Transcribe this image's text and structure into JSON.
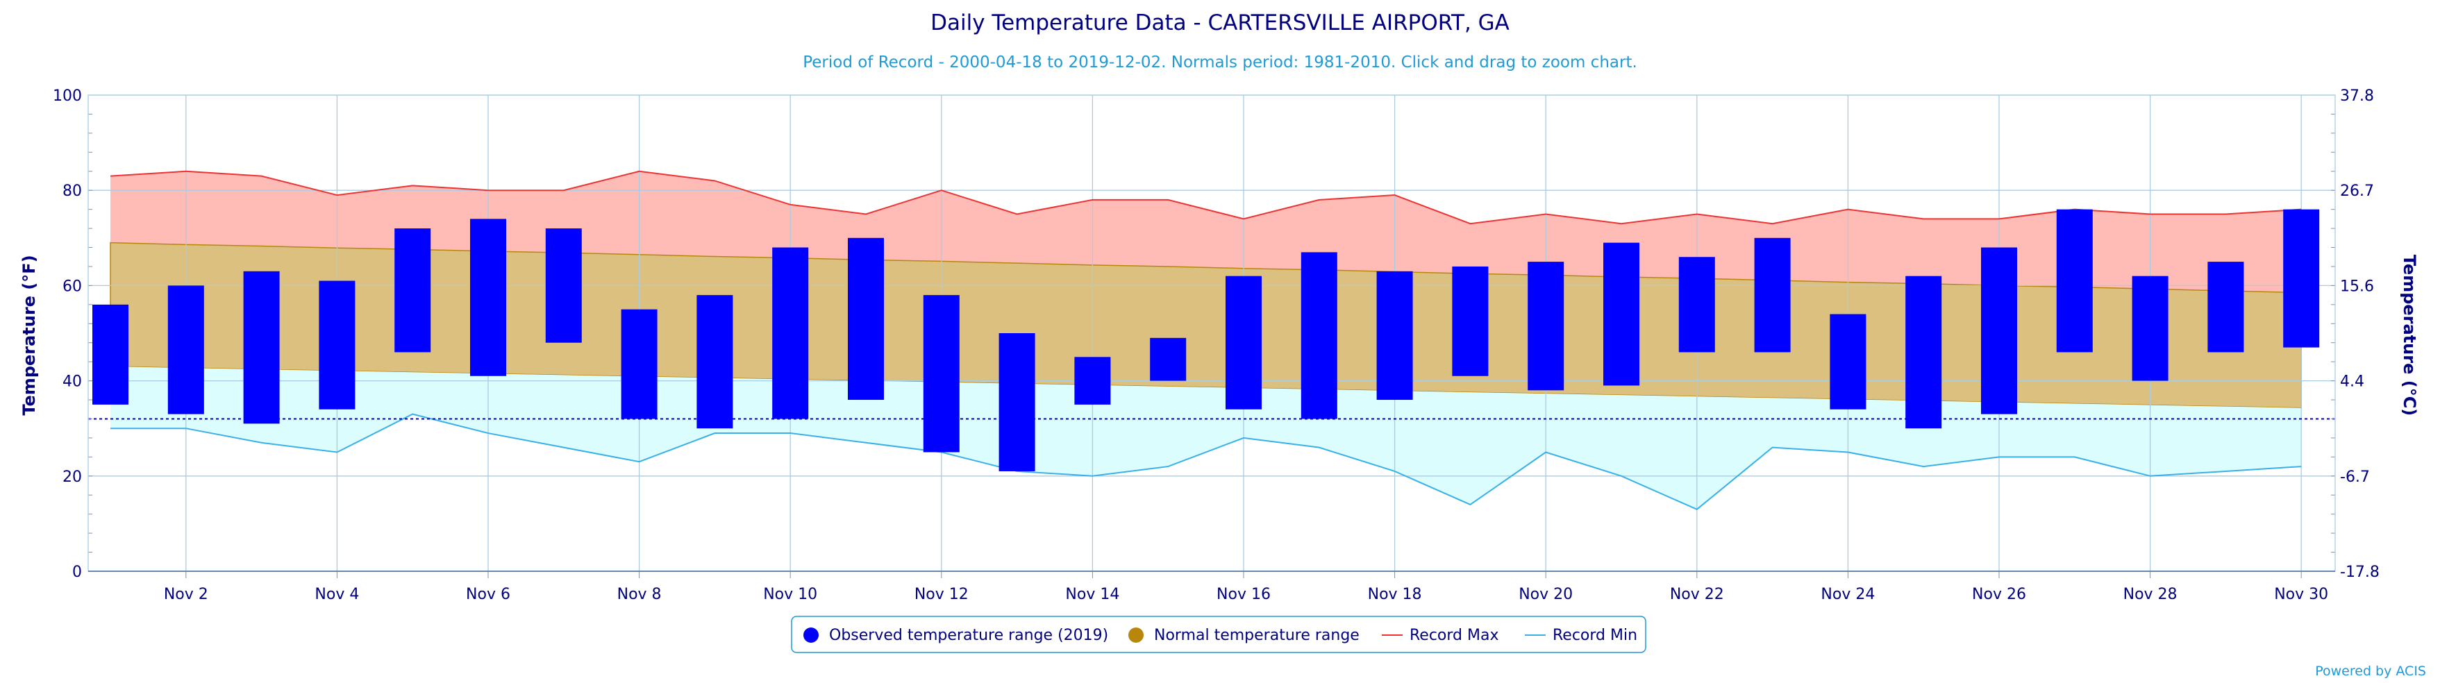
{
  "chart_data": {
    "type": "bar",
    "title": "Daily Temperature Data - CARTERSVILLE AIRPORT, GA",
    "subtitle": "Period of Record - 2000-04-18 to 2019-12-02. Normals period: 1981-2010. Click and drag to zoom chart.",
    "ylabel": "Temperature (°F)",
    "ylabel_right": "Temperature (°C)",
    "ylim": [
      0,
      100
    ],
    "y_ticks": [
      "0",
      "20",
      "40",
      "60",
      "80",
      "100"
    ],
    "y_ticks_right": [
      {
        "f": 0,
        "label": "-17.8"
      },
      {
        "f": 20,
        "label": "-6.7"
      },
      {
        "f": 40,
        "label": "4.4"
      },
      {
        "f": 60,
        "label": "15.6"
      },
      {
        "f": 80,
        "label": "26.7"
      },
      {
        "f": 100,
        "label": "37.8"
      }
    ],
    "xlim": [
      1,
      30
    ],
    "x_ticks": [
      {
        "day": 2,
        "label": "Nov 2"
      },
      {
        "day": 4,
        "label": "Nov 4"
      },
      {
        "day": 6,
        "label": "Nov 6"
      },
      {
        "day": 8,
        "label": "Nov 8"
      },
      {
        "day": 10,
        "label": "Nov 10"
      },
      {
        "day": 12,
        "label": "Nov 12"
      },
      {
        "day": 14,
        "label": "Nov 14"
      },
      {
        "day": 16,
        "label": "Nov 16"
      },
      {
        "day": 18,
        "label": "Nov 18"
      },
      {
        "day": 20,
        "label": "Nov 20"
      },
      {
        "day": 22,
        "label": "Nov 22"
      },
      {
        "day": 24,
        "label": "Nov 24"
      },
      {
        "day": 26,
        "label": "Nov 26"
      },
      {
        "day": 28,
        "label": "Nov 28"
      },
      {
        "day": 30,
        "label": "Nov 30"
      }
    ],
    "days": [
      1,
      2,
      3,
      4,
      5,
      6,
      7,
      8,
      9,
      10,
      11,
      12,
      13,
      14,
      15,
      16,
      17,
      18,
      19,
      20,
      21,
      22,
      23,
      24,
      25,
      26,
      27,
      28,
      29,
      30
    ],
    "observed_high": [
      56,
      60,
      63,
      61,
      72,
      74,
      72,
      55,
      58,
      68,
      70,
      58,
      50,
      45,
      49,
      62,
      67,
      63,
      64,
      65,
      69,
      66,
      70,
      54,
      62,
      68,
      76,
      62,
      65,
      76
    ],
    "observed_low": [
      35,
      33,
      31,
      34,
      46,
      41,
      48,
      32,
      30,
      32,
      36,
      25,
      21,
      35,
      40,
      34,
      32,
      36,
      41,
      38,
      39,
      46,
      46,
      34,
      30,
      33,
      46,
      40,
      46,
      47
    ],
    "normal_high": [
      69,
      68.6,
      68.3,
      67.9,
      67.6,
      67.2,
      66.9,
      66.5,
      66.1,
      65.8,
      65.4,
      65.1,
      64.7,
      64.3,
      64,
      63.6,
      63.3,
      62.9,
      62.5,
      62.2,
      61.8,
      61.5,
      61.1,
      60.7,
      60.4,
      60,
      59.7,
      59.3,
      58.9,
      58.5
    ],
    "normal_low": [
      43,
      42.7,
      42.4,
      42.1,
      41.8,
      41.5,
      41.2,
      40.9,
      40.6,
      40.3,
      40,
      39.7,
      39.4,
      39.1,
      38.8,
      38.5,
      38.2,
      37.9,
      37.6,
      37.3,
      37,
      36.7,
      36.4,
      36.1,
      35.8,
      35.5,
      35.2,
      34.9,
      34.6,
      34.3
    ],
    "record_max": [
      83,
      84,
      83,
      79,
      81,
      80,
      80,
      84,
      82,
      77,
      75,
      80,
      75,
      78,
      78,
      74,
      78,
      79,
      73,
      75,
      73,
      75,
      73,
      76,
      74,
      74,
      76,
      75,
      75,
      76
    ],
    "record_min": [
      30,
      30,
      27,
      25,
      33,
      29,
      26,
      23,
      29,
      29,
      27,
      25,
      21,
      20,
      22,
      28,
      26,
      21,
      14,
      25,
      20,
      13,
      26,
      25,
      22,
      24,
      24,
      20,
      21,
      22
    ],
    "freezing_line": 32,
    "colors": {
      "observed": "#0000ff",
      "normal_fill": "#dbc080",
      "normal_edge": "#b8860b",
      "normal_marker": "#b8860b",
      "record_max_line": "#ee3333",
      "record_max_fill": "#ffbcb6",
      "record_min_line": "#39b0e8",
      "record_min_fill": "#dcfdfd",
      "grid": "#a9cce3",
      "freeze_line": "#0000cc"
    },
    "legend": [
      {
        "key": "observed",
        "label": "Observed temperature range (2019)",
        "symbol": "circle"
      },
      {
        "key": "normal",
        "label": "Normal temperature range",
        "symbol": "circle"
      },
      {
        "key": "recmax",
        "label": "Record Max",
        "symbol": "line"
      },
      {
        "key": "recmin",
        "label": "Record Min",
        "symbol": "line"
      }
    ],
    "legend_position": "bottom-center",
    "grid": true
  },
  "credit": "Powered by ACIS"
}
